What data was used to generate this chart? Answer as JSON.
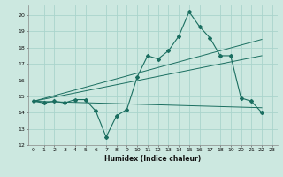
{
  "title": "",
  "xlabel": "Humidex (Indice chaleur)",
  "bg_color": "#cce8e0",
  "grid_color": "#aad4cc",
  "line_color": "#1a6e60",
  "xlim": [
    -0.5,
    23.5
  ],
  "ylim": [
    12,
    20.6
  ],
  "yticks": [
    12,
    13,
    14,
    15,
    16,
    17,
    18,
    19,
    20
  ],
  "xticks": [
    0,
    1,
    2,
    3,
    4,
    5,
    6,
    7,
    8,
    9,
    10,
    11,
    12,
    13,
    14,
    15,
    16,
    17,
    18,
    19,
    20,
    21,
    22,
    23
  ],
  "series1_x": [
    0,
    1,
    2,
    3,
    4,
    5,
    6,
    7,
    8,
    9,
    10,
    11,
    12,
    13,
    14,
    15,
    16,
    17,
    18,
    19,
    20,
    21,
    22
  ],
  "series1_y": [
    14.7,
    14.6,
    14.7,
    14.6,
    14.8,
    14.8,
    14.1,
    12.5,
    13.8,
    14.2,
    16.2,
    17.5,
    17.3,
    17.8,
    18.7,
    20.2,
    19.3,
    18.6,
    17.5,
    17.5,
    14.9,
    14.7,
    14.0
  ],
  "series2_x": [
    0,
    22
  ],
  "series2_y": [
    14.7,
    14.3
  ],
  "series3_x": [
    0,
    22
  ],
  "series3_y": [
    14.7,
    17.5
  ],
  "series4_x": [
    0,
    22
  ],
  "series4_y": [
    14.7,
    18.5
  ]
}
